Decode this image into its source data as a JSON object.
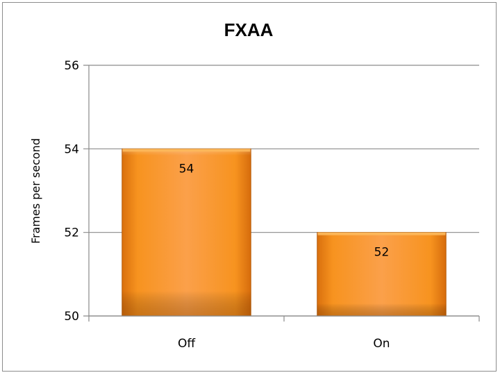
{
  "chart_data": {
    "type": "bar",
    "title": "FXAA",
    "xlabel": "",
    "ylabel": "Frames per second",
    "categories": [
      "Off",
      "On"
    ],
    "values": [
      54,
      52
    ],
    "data_labels": [
      "54",
      "52"
    ],
    "ylim": [
      50,
      56
    ],
    "yticks": [
      50,
      52,
      54,
      56
    ],
    "ytick_labels": [
      "50",
      "52",
      "54",
      "56"
    ],
    "grid": true,
    "legend": "none",
    "bar_color": "#f7941d",
    "bar_highlight": "#fcb85a",
    "bar_shadow": "#c0600a"
  }
}
